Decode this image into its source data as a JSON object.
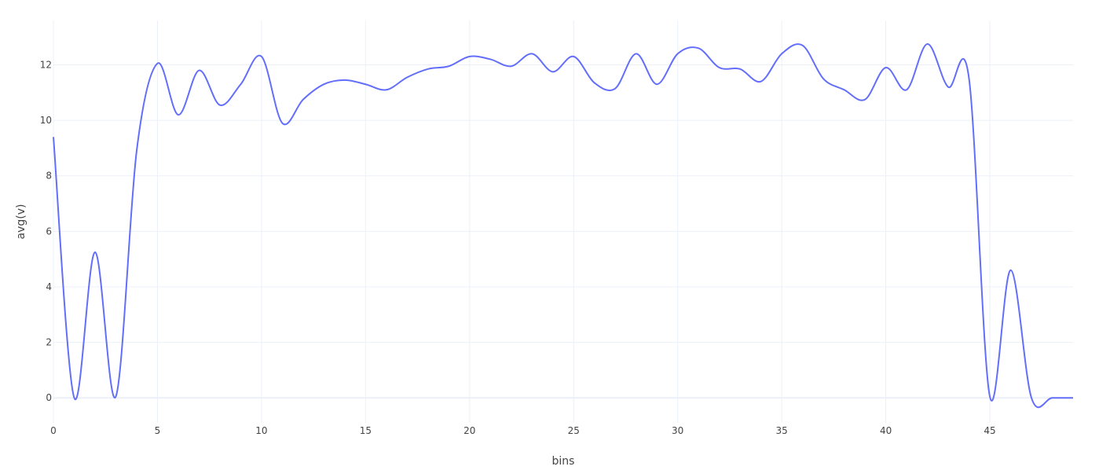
{
  "chart_data": {
    "type": "line",
    "title": "",
    "xlabel": "bins",
    "ylabel": "avg(v)",
    "xlim": [
      0,
      49
    ],
    "ylim": [
      -0.9,
      13.6
    ],
    "x_ticks": [
      0,
      5,
      10,
      15,
      20,
      25,
      30,
      35,
      40,
      45
    ],
    "y_ticks": [
      0,
      2,
      4,
      6,
      8,
      10,
      12
    ],
    "grid": true,
    "line_color": "#636efa",
    "series": [
      {
        "x": [
          0,
          1,
          2,
          3,
          4,
          5,
          6,
          7,
          8,
          9,
          10,
          11,
          12,
          13,
          14,
          15,
          16,
          17,
          18,
          19,
          20,
          21,
          22,
          23,
          24,
          25,
          26,
          27,
          28,
          29,
          30,
          31,
          32,
          33,
          34,
          35,
          36,
          37,
          38,
          39,
          40,
          41,
          42,
          43,
          44,
          45,
          46,
          47,
          48,
          49
        ],
        "values": [
          9.4,
          0.0,
          5.25,
          0.05,
          8.9,
          12.05,
          10.2,
          11.8,
          10.55,
          11.3,
          12.3,
          9.9,
          10.75,
          11.3,
          11.45,
          11.3,
          11.1,
          11.55,
          11.85,
          11.95,
          12.3,
          12.2,
          11.95,
          12.4,
          11.75,
          12.3,
          11.35,
          11.15,
          12.4,
          11.3,
          12.4,
          12.6,
          11.9,
          11.85,
          11.4,
          12.4,
          12.7,
          11.5,
          11.1,
          10.75,
          11.9,
          11.1,
          12.75,
          11.2,
          11.5,
          0.05,
          4.6,
          0.0,
          0.0,
          0.0
        ]
      }
    ]
  }
}
